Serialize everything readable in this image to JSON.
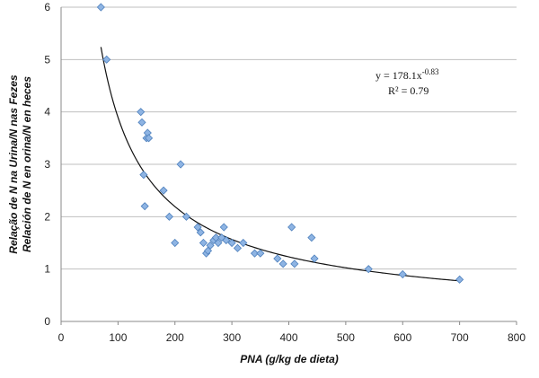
{
  "chart_data": {
    "type": "scatter",
    "title": "",
    "xlabel": "PNA (g/kg de dieta)",
    "ylabel_lines": [
      "Relação de N na Urina/N nas Fezes",
      "Relación de N en orina/N en heces"
    ],
    "xlim": [
      0,
      800
    ],
    "ylim": [
      0,
      6
    ],
    "x_ticks": [
      "0",
      "100",
      "200",
      "300",
      "400",
      "500",
      "600",
      "700",
      "800"
    ],
    "y_ticks": [
      "0",
      "1",
      "2",
      "3",
      "4",
      "5",
      "6"
    ],
    "grid": "horizontal",
    "legend": "none",
    "points": [
      [
        70,
        6.0
      ],
      [
        80,
        5.0
      ],
      [
        140,
        4.0
      ],
      [
        142,
        3.8
      ],
      [
        145,
        2.8
      ],
      [
        147,
        2.2
      ],
      [
        150,
        3.5
      ],
      [
        152,
        3.6
      ],
      [
        154,
        3.5
      ],
      [
        180,
        2.5
      ],
      [
        190,
        2.0
      ],
      [
        200,
        1.5
      ],
      [
        210,
        3.0
      ],
      [
        220,
        2.0
      ],
      [
        240,
        1.8
      ],
      [
        245,
        1.7
      ],
      [
        250,
        1.5
      ],
      [
        255,
        1.3
      ],
      [
        258,
        1.35
      ],
      [
        262,
        1.45
      ],
      [
        268,
        1.55
      ],
      [
        272,
        1.6
      ],
      [
        276,
        1.5
      ],
      [
        282,
        1.6
      ],
      [
        286,
        1.8
      ],
      [
        290,
        1.55
      ],
      [
        300,
        1.5
      ],
      [
        310,
        1.4
      ],
      [
        320,
        1.5
      ],
      [
        340,
        1.3
      ],
      [
        350,
        1.3
      ],
      [
        380,
        1.2
      ],
      [
        390,
        1.1
      ],
      [
        405,
        1.8
      ],
      [
        410,
        1.1
      ],
      [
        440,
        1.6
      ],
      [
        445,
        1.2
      ],
      [
        540,
        1.0
      ],
      [
        600,
        0.9
      ],
      [
        700,
        0.8
      ]
    ],
    "trendline": {
      "type": "power",
      "coef": 178.1,
      "exponent": -0.83,
      "x_range": [
        70,
        700
      ],
      "equation_base": "y = 178.1x",
      "equation_exp": "-0.83",
      "r2_text": "R² = 0.79"
    },
    "colors": {
      "marker_fill": "#8EB4E3",
      "marker_stroke": "#4F81BD",
      "trendline": "#111111",
      "grid": "#BFBFBF",
      "axis": "#888888"
    }
  }
}
